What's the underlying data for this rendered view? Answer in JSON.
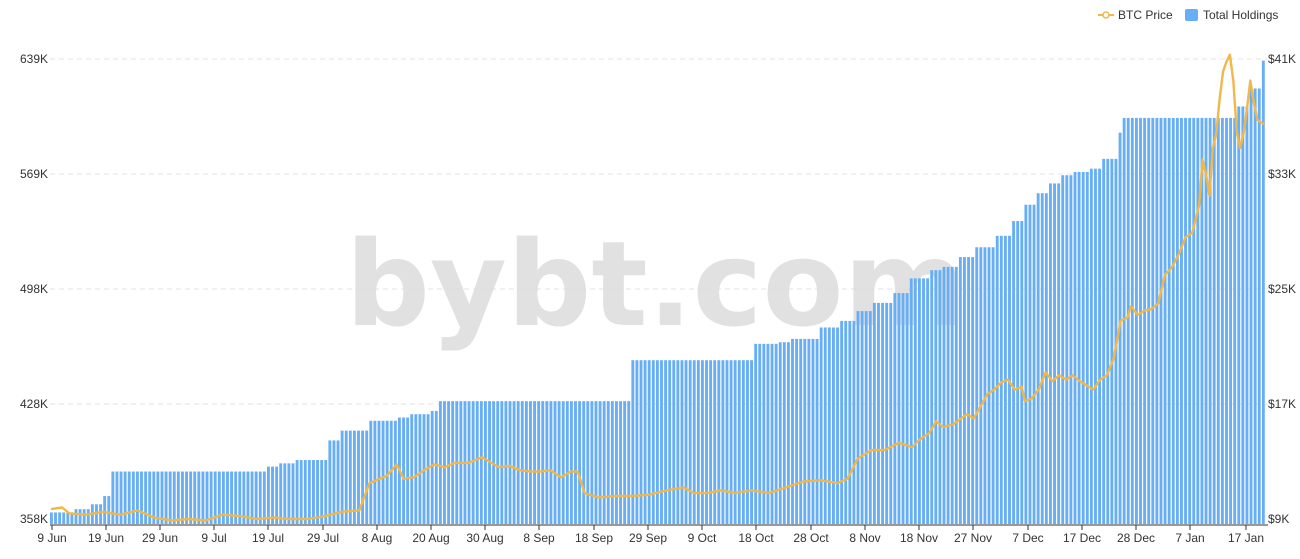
{
  "watermark": "bybt.com",
  "legend": {
    "btc_price_label": "BTC Price",
    "holdings_label": "Total Holdings"
  },
  "colors": {
    "holdings_bar": "#67aef5",
    "btc_line": "#f0b84a",
    "grid": "#e3e3e3"
  },
  "chart_data": {
    "type": "bar",
    "title": "",
    "legend_position": "top-right",
    "grid": true,
    "x_tick_labels": [
      "9 Jun",
      "19 Jun",
      "29 Jun",
      "9 Jul",
      "19 Jul",
      "29 Jul",
      "8 Aug",
      "20 Aug",
      "30 Aug",
      "8 Sep",
      "18 Sep",
      "29 Sep",
      "9 Oct",
      "18 Oct",
      "28 Oct",
      "8 Nov",
      "18 Nov",
      "27 Nov",
      "7 Dec",
      "17 Dec",
      "28 Dec",
      "7 Jan",
      "17 Jan"
    ],
    "y_left": {
      "ticks": [
        "358K",
        "428K",
        "498K",
        "569K",
        "639K"
      ],
      "range": [
        358,
        639
      ],
      "unit": "K"
    },
    "y_right": {
      "ticks": [
        "$9K",
        "$17K",
        "$25K",
        "$33K",
        "$41K"
      ],
      "range": [
        9,
        41
      ],
      "unit": "K USD"
    },
    "series": [
      {
        "name": "Total Holdings",
        "type": "bar",
        "axis": "left",
        "step_points": [
          [
            0,
            362
          ],
          [
            3,
            362
          ],
          [
            6,
            364
          ],
          [
            10,
            367
          ],
          [
            13,
            372
          ],
          [
            15,
            387
          ],
          [
            48,
            387
          ],
          [
            53,
            390
          ],
          [
            56,
            392
          ],
          [
            60,
            394
          ],
          [
            68,
            406
          ],
          [
            71,
            412
          ],
          [
            78,
            418
          ],
          [
            85,
            420
          ],
          [
            88,
            422
          ],
          [
            93,
            424
          ],
          [
            95,
            430
          ],
          [
            135,
            430
          ],
          [
            142,
            455
          ],
          [
            170,
            455
          ],
          [
            172,
            465
          ],
          [
            178,
            466
          ],
          [
            181,
            468
          ],
          [
            188,
            475
          ],
          [
            193,
            479
          ],
          [
            197,
            485
          ],
          [
            201,
            490
          ],
          [
            206,
            496
          ],
          [
            210,
            505
          ],
          [
            215,
            510
          ],
          [
            218,
            512
          ],
          [
            222,
            518
          ],
          [
            226,
            524
          ],
          [
            231,
            531
          ],
          [
            235,
            540
          ],
          [
            238,
            550
          ],
          [
            241,
            557
          ],
          [
            244,
            563
          ],
          [
            247,
            568
          ],
          [
            250,
            570
          ],
          [
            254,
            572
          ],
          [
            257,
            578
          ],
          [
            261,
            594
          ],
          [
            262,
            603
          ],
          [
            264,
            603
          ],
          [
            282,
            603
          ],
          [
            286,
            603
          ],
          [
            290,
            610
          ],
          [
            293,
            621
          ],
          [
            296,
            638
          ]
        ],
        "count": 297
      },
      {
        "name": "BTC Price",
        "type": "line",
        "axis": "right",
        "points": [
          [
            0,
            9.7
          ],
          [
            3,
            9.8
          ],
          [
            5,
            9.4
          ],
          [
            10,
            9.3
          ],
          [
            15,
            9.5
          ],
          [
            20,
            9.3
          ],
          [
            25,
            9.6
          ],
          [
            30,
            9.1
          ],
          [
            35,
            8.9
          ],
          [
            40,
            9.0
          ],
          [
            45,
            8.9
          ],
          [
            50,
            9.3
          ],
          [
            55,
            9.2
          ],
          [
            60,
            9.0
          ],
          [
            65,
            9.1
          ],
          [
            70,
            9.0
          ],
          [
            75,
            9.0
          ],
          [
            80,
            9.2
          ],
          [
            85,
            9.5
          ],
          [
            90,
            9.6
          ],
          [
            93,
            11.5
          ],
          [
            96,
            11.8
          ],
          [
            98,
            12.0
          ],
          [
            101,
            12.8
          ],
          [
            103,
            11.8
          ],
          [
            106,
            11.9
          ],
          [
            109,
            12.4
          ],
          [
            112,
            12.8
          ],
          [
            115,
            12.6
          ],
          [
            118,
            12.9
          ],
          [
            122,
            12.9
          ],
          [
            126,
            13.3
          ],
          [
            128,
            13.0
          ],
          [
            131,
            12.6
          ],
          [
            134,
            12.7
          ],
          [
            137,
            12.4
          ],
          [
            140,
            12.3
          ],
          [
            143,
            12.3
          ],
          [
            146,
            12.4
          ],
          [
            149,
            11.9
          ],
          [
            152,
            12.3
          ],
          [
            154,
            12.3
          ],
          [
            156,
            10.8
          ],
          [
            160,
            10.5
          ],
          [
            165,
            10.6
          ],
          [
            170,
            10.6
          ],
          [
            175,
            10.7
          ],
          [
            180,
            11.0
          ],
          [
            185,
            11.2
          ],
          [
            188,
            10.8
          ],
          [
            192,
            10.8
          ],
          [
            196,
            11.0
          ],
          [
            200,
            10.8
          ],
          [
            205,
            11.0
          ],
          [
            210,
            10.8
          ],
          [
            215,
            11.2
          ],
          [
            220,
            11.6
          ],
          [
            225,
            11.7
          ],
          [
            230,
            11.5
          ],
          [
            233,
            11.8
          ],
          [
            236,
            13.2
          ],
          [
            240,
            13.8
          ],
          [
            244,
            13.8
          ],
          [
            248,
            14.3
          ],
          [
            252,
            14.0
          ],
          [
            254,
            14.5
          ],
          [
            257,
            15.0
          ],
          [
            259,
            15.8
          ],
          [
            261,
            15.4
          ],
          [
            264,
            15.6
          ],
          [
            268,
            16.3
          ],
          [
            270,
            16.0
          ],
          [
            274,
            17.7
          ],
          [
            276,
            18.0
          ],
          [
            278,
            18.5
          ],
          [
            280,
            18.7
          ],
          [
            282,
            18.0
          ],
          [
            284,
            18.2
          ],
          [
            285,
            17.2
          ],
          [
            287,
            17.4
          ],
          [
            289,
            18.0
          ],
          [
            291,
            19.2
          ],
          [
            293,
            18.6
          ],
          [
            295,
            19.0
          ],
          [
            297,
            18.7
          ],
          [
            299,
            19.0
          ],
          [
            301,
            18.6
          ],
          [
            303,
            18.3
          ],
          [
            305,
            18.0
          ],
          [
            307,
            18.7
          ],
          [
            309,
            19.0
          ],
          [
            311,
            20.2
          ],
          [
            313,
            22.8
          ],
          [
            315,
            23.0
          ],
          [
            316,
            23.8
          ],
          [
            318,
            23.2
          ],
          [
            320,
            23.5
          ],
          [
            322,
            23.6
          ],
          [
            324,
            24.0
          ],
          [
            326,
            26.0
          ],
          [
            328,
            26.5
          ],
          [
            330,
            27.4
          ],
          [
            332,
            28.6
          ],
          [
            334,
            28.9
          ],
          [
            336,
            30.8
          ],
          [
            337,
            34.0
          ],
          [
            338,
            33.0
          ],
          [
            339,
            31.5
          ],
          [
            340,
            34.8
          ],
          [
            341,
            35.8
          ],
          [
            342,
            38.2
          ],
          [
            343,
            40.1
          ],
          [
            344,
            40.8
          ],
          [
            345,
            41.3
          ],
          [
            346,
            39.5
          ],
          [
            347,
            36.0
          ],
          [
            348,
            34.8
          ],
          [
            349,
            35.8
          ],
          [
            350,
            37.5
          ],
          [
            351,
            39.5
          ],
          [
            352,
            38.0
          ],
          [
            353,
            36.8
          ],
          [
            354,
            36.6
          ],
          [
            355,
            36.5
          ]
        ],
        "point_count": 356
      }
    ]
  }
}
